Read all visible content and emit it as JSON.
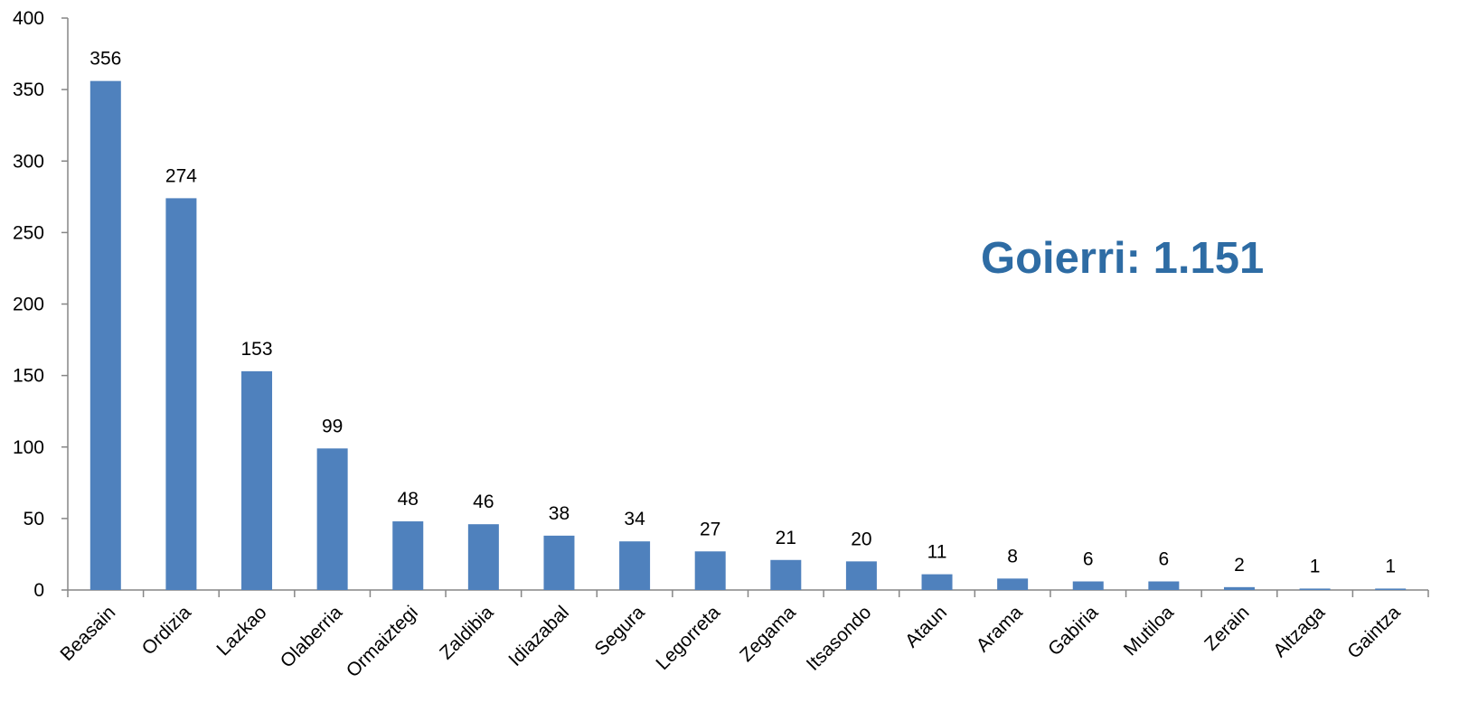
{
  "chart_data": {
    "type": "bar",
    "title": "",
    "xlabel": "",
    "ylabel": "",
    "categories": [
      "Beasain",
      "Ordizia",
      "Lazkao",
      "Olaberria",
      "Ormaiztegi",
      "Zaldibia",
      "Idiazabal",
      "Segura",
      "Legorreta",
      "Zegama",
      "Itsasondo",
      "Ataun",
      "Arama",
      "Gabiria",
      "Mutiloa",
      "Zerain",
      "Altzaga",
      "Gaintza"
    ],
    "values": [
      356,
      274,
      153,
      99,
      48,
      46,
      38,
      34,
      27,
      21,
      20,
      11,
      8,
      6,
      6,
      2,
      1,
      1
    ],
    "value_labels": [
      "356",
      "274",
      "153",
      "99",
      "48",
      "46",
      "38",
      "34",
      "27",
      "21",
      "20",
      "11",
      "8",
      "6",
      "6",
      "2",
      "1",
      "1"
    ],
    "ylim": [
      0,
      400
    ],
    "y_ticks": [
      0,
      50,
      100,
      150,
      200,
      250,
      300,
      350,
      400
    ],
    "y_tick_labels": [
      "0",
      "50",
      "100",
      "150",
      "200",
      "250",
      "300",
      "350",
      "400"
    ],
    "grid": false,
    "legend": "none",
    "bar_color": "#4F81BD",
    "annotation": {
      "text": "Goierri: 1.151",
      "color": "#2E6CA4"
    }
  }
}
